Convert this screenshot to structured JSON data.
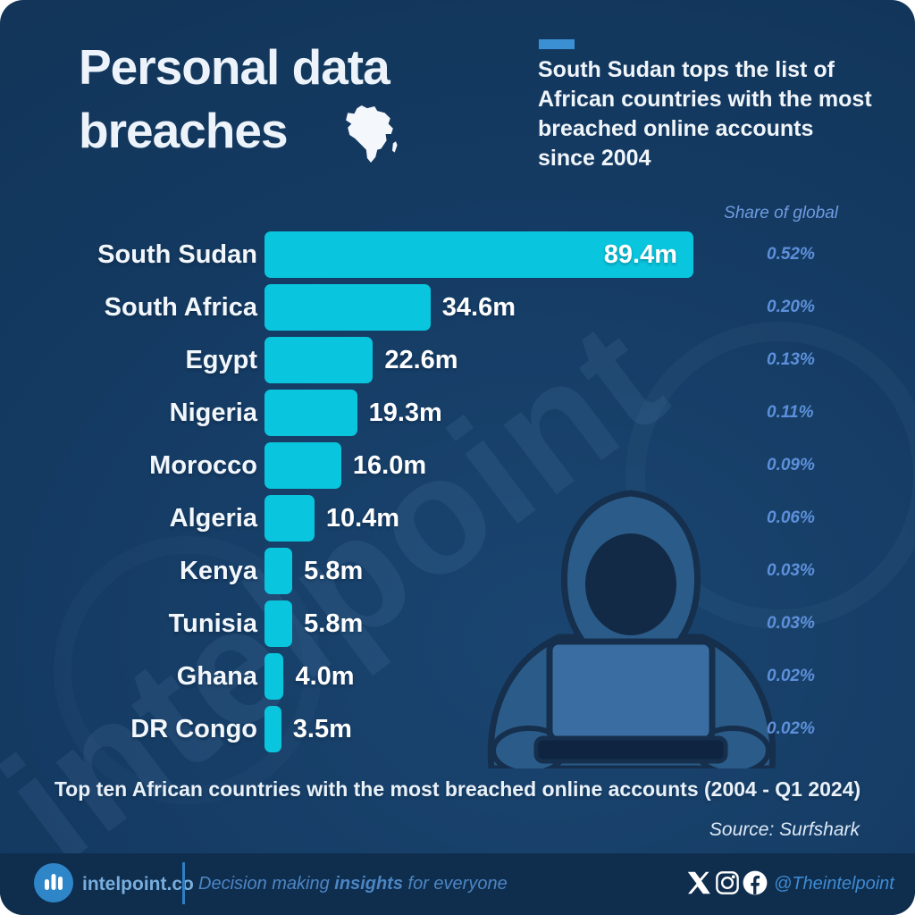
{
  "header": {
    "title_line1": "Personal data",
    "title_line2": "breaches",
    "subtitle": "South Sudan tops the list of African countries with the most breached online accounts since 2004",
    "accent_color": "#3b90d4"
  },
  "chart_data": {
    "type": "bar",
    "orientation": "horizontal",
    "title": "Personal data breaches — top ten African countries with the most breached online accounts (2004 - Q1 2024)",
    "categories": [
      "South Sudan",
      "South Africa",
      "Egypt",
      "Nigeria",
      "Morocco",
      "Algeria",
      "Kenya",
      "Tunisia",
      "Ghana",
      "DR Congo"
    ],
    "values": [
      89.4,
      34.6,
      22.6,
      19.3,
      16.0,
      10.4,
      5.8,
      5.8,
      4.0,
      3.5
    ],
    "value_labels": [
      "89.4m",
      "34.6m",
      "22.6m",
      "19.3m",
      "16.0m",
      "10.4m",
      "5.8m",
      "5.8m",
      "4.0m",
      "3.5m"
    ],
    "share_of_global": [
      "0.52%",
      "0.20%",
      "0.13%",
      "0.11%",
      "0.09%",
      "0.06%",
      "0.03%",
      "0.03%",
      "0.02%",
      "0.02%"
    ],
    "share_header": "Share of global",
    "xlabel": "",
    "ylabel": "",
    "xlim": [
      0,
      89.4
    ],
    "bar_color": "#09c6de",
    "legend": "none",
    "grid": "off"
  },
  "caption": "Top ten African countries with the most breached online accounts (2004 - Q1 2024)",
  "source": "Source: Surfshark",
  "watermark": "intelpoint",
  "colors": {
    "background": "#143a62",
    "footer_band": "#0f2d4d",
    "bar": "#09c6de",
    "accent": "#3b90d4",
    "share_text": "#5d90da",
    "light_text": "#eef4fa",
    "brand_blue": "#2e86c9"
  },
  "footer": {
    "brand": "intelpoint.co",
    "tagline_prefix": "Decision making ",
    "tagline_bold": "insights",
    "tagline_suffix": " for everyone",
    "handle": "@Theintelpoint"
  }
}
